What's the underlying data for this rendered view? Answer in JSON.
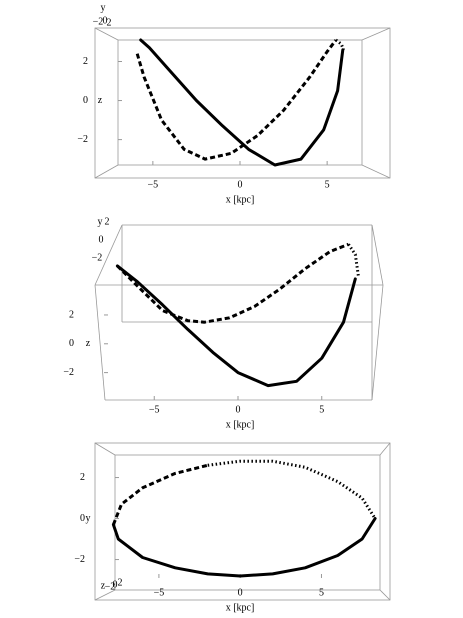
{
  "chart_data": [
    {
      "type": "line",
      "xlabel": "x [kpc]",
      "ylabel": "z",
      "depth_label": "y",
      "xlim": [
        -7,
        7
      ],
      "ylim": [
        -3.3,
        3.1
      ],
      "xticks": [
        {
          "value": -5,
          "label": "−5"
        },
        0,
        5
      ],
      "yticks": [
        {
          "value": -2,
          "label": "−2"
        },
        0,
        2
      ],
      "depth_ticks": [
        {
          "value": -2,
          "label": "−2"
        },
        0,
        2
      ],
      "series": [
        {
          "linestyle": "solid",
          "color": "#000000",
          "x": [
            -5.7,
            -5.2,
            -4,
            -2.5,
            -1,
            0.5,
            2,
            3.5,
            4.8,
            5.6,
            5.9
          ],
          "values": [
            3.1,
            2.7,
            1.5,
            0,
            -1.3,
            -2.5,
            -3.3,
            -3,
            -1.5,
            0.5,
            2.6
          ]
        },
        {
          "linestyle": "dashed",
          "color": "#000000",
          "x": [
            -5.9,
            -5.5,
            -4.5,
            -3.2,
            -2,
            -0.5,
            1,
            2.5,
            4,
            5,
            5.5
          ],
          "values": [
            2.4,
            1.2,
            -1,
            -2.5,
            -3,
            -2.7,
            -1.8,
            -0.5,
            1.2,
            2.5,
            3.1
          ]
        },
        {
          "linestyle": "dotted",
          "color": "#000000",
          "x": [
            5.5,
            5.8,
            5.95
          ],
          "values": [
            3.1,
            2.9,
            2.6
          ]
        }
      ]
    },
    {
      "type": "line",
      "xlabel": "x [kpc]",
      "ylabel": "z",
      "depth_label": "y",
      "xlim": [
        -8,
        8
      ],
      "ylim": [
        -3.9,
        7.2
      ],
      "xticks": [
        {
          "value": -5,
          "label": "−5"
        },
        0,
        5
      ],
      "yticks": [
        {
          "value": -2,
          "label": "−2"
        },
        0,
        2
      ],
      "depth_ticks": [
        {
          "value": -2,
          "label": "−2"
        },
        0,
        2
      ],
      "series": [
        {
          "linestyle": "solid",
          "color": "#000000",
          "x": [
            -7.2,
            -6,
            -4.5,
            -3,
            -1.5,
            0,
            1.8,
            3.5,
            5,
            6.3,
            7
          ],
          "values": [
            5.4,
            4.3,
            2.7,
            1,
            -0.6,
            -2,
            -2.9,
            -2.6,
            -1,
            1.5,
            4.5
          ]
        },
        {
          "linestyle": "dashed",
          "color": "#000000",
          "x": [
            -7.2,
            -6,
            -4.5,
            -3,
            -2,
            -0.5,
            1,
            2.5,
            4,
            5.5,
            6.6
          ],
          "values": [
            5.4,
            4,
            2.3,
            1.6,
            1.5,
            1.8,
            2.6,
            3.8,
            5.2,
            6.4,
            6.9
          ]
        },
        {
          "linestyle": "dotted",
          "color": "#000000",
          "x": [
            6.6,
            7,
            7.2
          ],
          "values": [
            6.9,
            6.2,
            4.6
          ]
        }
      ]
    },
    {
      "type": "line",
      "xlabel": "x [kpc]",
      "ylabel": "y",
      "depth_label": "z",
      "xlim": [
        -7.7,
        8.6
      ],
      "ylim": [
        -2.9,
        3.1
      ],
      "xticks": [
        {
          "value": -5,
          "label": "−5"
        },
        0,
        5
      ],
      "yticks": [
        {
          "value": -2,
          "label": "−2"
        },
        0,
        2
      ],
      "depth_ticks": [
        {
          "value": -2,
          "label": "−2"
        },
        0,
        2
      ],
      "series": [
        {
          "linestyle": "solid",
          "color": "#000000",
          "x": [
            -7.8,
            -7.5,
            -6,
            -4,
            -2,
            0,
            2,
            4,
            6,
            7.5,
            8.3
          ],
          "values": [
            -0.3,
            -1,
            -1.9,
            -2.4,
            -2.7,
            -2.8,
            -2.7,
            -2.4,
            -1.8,
            -1,
            0
          ]
        },
        {
          "linestyle": "dashed",
          "color": "#000000",
          "x": [
            -7.8,
            -7.3,
            -6,
            -4,
            -2
          ],
          "values": [
            -0.3,
            0.7,
            1.5,
            2.2,
            2.6
          ]
        },
        {
          "linestyle": "dotted",
          "color": "#000000",
          "x": [
            -2,
            0,
            2,
            4,
            6,
            7.5,
            8.3
          ],
          "values": [
            2.6,
            2.8,
            2.8,
            2.5,
            1.8,
            1,
            0
          ]
        }
      ]
    }
  ]
}
